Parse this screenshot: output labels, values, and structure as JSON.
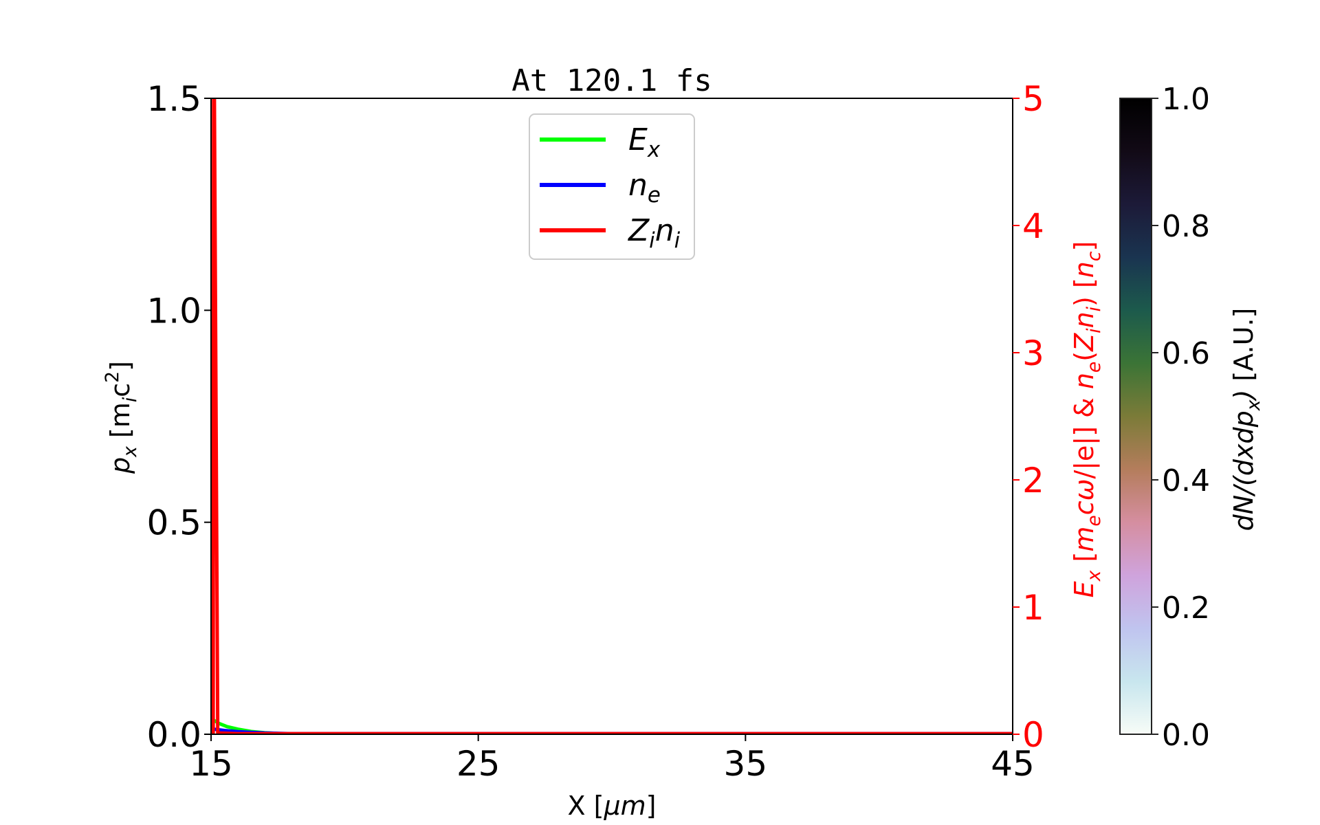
{
  "chart_data": {
    "type": "line",
    "title": "At 120.1 fs",
    "xlabel": [
      "X  [",
      "μm",
      "]"
    ],
    "ylabel_left": [
      {
        "t": "p",
        "i": true
      },
      {
        "t": "x",
        "i": true,
        "sub": true
      },
      {
        "t": "  [m"
      },
      {
        "t": "i",
        "i": true,
        "sub": true
      },
      {
        "t": "c"
      },
      {
        "t": "2",
        "sup": true
      },
      {
        "t": "]"
      }
    ],
    "ylabel_right": [
      {
        "t": "E",
        "i": true
      },
      {
        "t": "x",
        "i": true,
        "sub": true
      },
      {
        "t": "  ["
      },
      {
        "t": "m",
        "i": true
      },
      {
        "t": "e",
        "i": true,
        "sub": true
      },
      {
        "t": "cω",
        "i": true
      },
      {
        "t": "/|e|]  &  "
      },
      {
        "t": "n",
        "i": true
      },
      {
        "t": "e",
        "i": true,
        "sub": true
      },
      {
        "t": "("
      },
      {
        "t": "Z",
        "i": true
      },
      {
        "t": "i",
        "i": true,
        "sub": true
      },
      {
        "t": "n",
        "i": true
      },
      {
        "t": "i",
        "i": true,
        "sub": true
      },
      {
        "t": ")  ["
      },
      {
        "t": "n",
        "i": true
      },
      {
        "t": "c",
        "i": true,
        "sub": true
      },
      {
        "t": "]"
      }
    ],
    "colorbar_label": [
      {
        "t": "dN/(dxdp",
        "i": true
      },
      {
        "t": "x",
        "i": true,
        "sub": true
      },
      {
        "t": ")",
        "i": true
      },
      {
        "t": "  [A.U.]"
      }
    ],
    "xlim": [
      15,
      45
    ],
    "ylim_left": [
      0,
      1.5
    ],
    "ylim_right": [
      0,
      5
    ],
    "colorbar_lim": [
      0,
      1
    ],
    "x_ticks": [
      "15",
      "25",
      "35",
      "45"
    ],
    "y_left_ticks": [
      "0.0",
      "0.5",
      "1.0",
      "1.5"
    ],
    "y_right_ticks": [
      "0",
      "1",
      "2",
      "3",
      "4",
      "5"
    ],
    "colorbar_ticks": [
      "0.0",
      "0.2",
      "0.4",
      "0.6",
      "0.8",
      "1.0"
    ],
    "grid": false,
    "legend_placement": "upper-center",
    "right_axis_color": "#ff0000",
    "series": [
      {
        "name": "E_x",
        "legend": [
          {
            "t": "E"
          },
          {
            "t": "x",
            "sub": true
          }
        ],
        "color": "#00ff00",
        "axis": "right",
        "x": [
          15.1,
          15.3,
          15.6,
          16.0,
          16.5,
          17.0,
          17.5,
          18.0,
          20.0,
          45.0
        ],
        "y": [
          0.11,
          0.085,
          0.06,
          0.04,
          0.022,
          0.012,
          0.006,
          0.003,
          0.0,
          0.0
        ]
      },
      {
        "name": "n_e",
        "legend": [
          {
            "t": "n"
          },
          {
            "t": "e",
            "sub": true
          }
        ],
        "color": "#0000ff",
        "axis": "right",
        "x": [
          15.1,
          15.5,
          16.0,
          17.0,
          18.0,
          45.0
        ],
        "y": [
          0.04,
          0.03,
          0.02,
          0.01,
          0.005,
          0.005
        ]
      },
      {
        "name": "Z_i n_i",
        "legend": [
          {
            "t": "Z"
          },
          {
            "t": "i",
            "sub": true
          },
          {
            "t": "n"
          },
          {
            "t": "i",
            "sub": true
          }
        ],
        "color": "#ff0000",
        "axis": "right",
        "x": [
          15.08,
          15.1,
          15.25,
          16.0,
          45.0
        ],
        "y": [
          0.0,
          6.0,
          0.01,
          0.005,
          0.005
        ]
      }
    ],
    "colormap": [
      "#f7fcf7",
      "#c8e6ee",
      "#c0c4ef",
      "#cfa3dc",
      "#d58ea0",
      "#b47d5c",
      "#7b7b38",
      "#3b7436",
      "#1c5a4c",
      "#1a3450",
      "#1c1a38",
      "#120a16",
      "#000000"
    ]
  }
}
